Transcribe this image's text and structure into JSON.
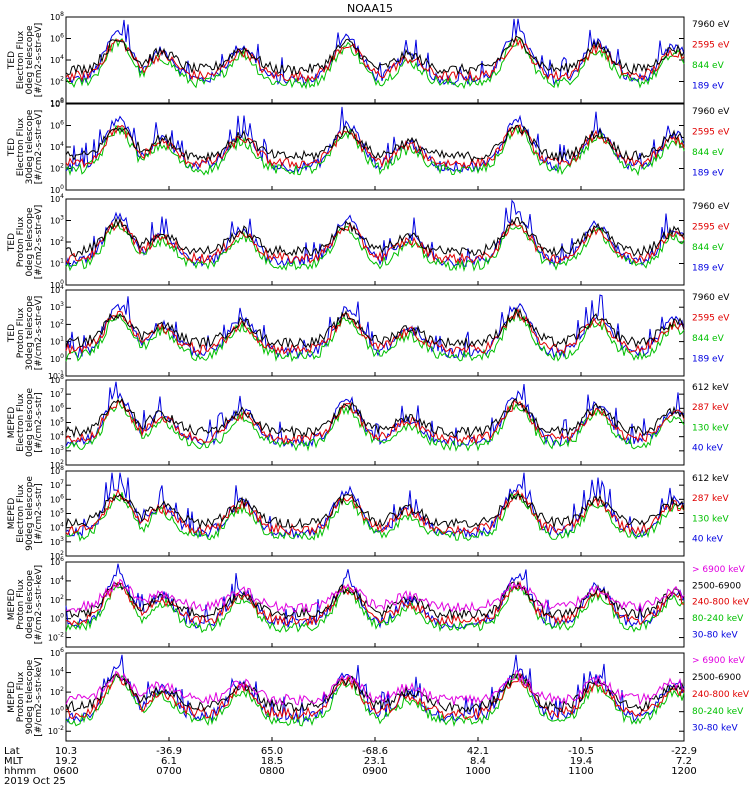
{
  "chart_data": {
    "type": "line",
    "title": "NOAA15",
    "date_label": "2019 Oct 25",
    "x_axis": {
      "row_labels": [
        "Lat",
        "MLT",
        "hhmm"
      ],
      "ticks": [
        {
          "lat": "10.3",
          "mlt": "19.2",
          "hhmm": "0600"
        },
        {
          "lat": "-36.9",
          "mlt": "6.1",
          "hhmm": "0700"
        },
        {
          "lat": "65.0",
          "mlt": "18.5",
          "hhmm": "0800"
        },
        {
          "lat": "-68.6",
          "mlt": "23.1",
          "hhmm": "0900"
        },
        {
          "lat": "42.1",
          "mlt": "8.4",
          "hhmm": "1000"
        },
        {
          "lat": "-10.5",
          "mlt": "19.4",
          "hhmm": "1100"
        },
        {
          "lat": "-22.9",
          "mlt": "7.2",
          "hhmm": "1200"
        }
      ],
      "range_hhmm": [
        "0600",
        "1200"
      ]
    },
    "panels": [
      {
        "ylabel": [
          "TED",
          "Electron Flux",
          "0deg telescope",
          "[#/cm2-s-str-eV]"
        ],
        "yticks": [
          {
            "base": "10",
            "exp": "0"
          },
          {
            "base": "10",
            "exp": "2"
          },
          {
            "base": "10",
            "exp": "4"
          },
          {
            "base": "10",
            "exp": "6"
          },
          {
            "base": "10",
            "exp": "8"
          }
        ],
        "ylog": [
          0,
          8
        ],
        "series": [
          {
            "label": "7960 eV",
            "color": "#000000"
          },
          {
            "label": "2595 eV",
            "color": "#e00000"
          },
          {
            "label": "844 eV",
            "color": "#00c000"
          },
          {
            "label": "189 eV",
            "color": "#0000e0"
          }
        ]
      },
      {
        "ylabel": [
          "TED",
          "Electron Flux",
          "30deg telescope",
          "[#/cm2-s-str-eV]"
        ],
        "yticks": [
          {
            "base": "10",
            "exp": "0"
          },
          {
            "base": "10",
            "exp": "2"
          },
          {
            "base": "10",
            "exp": "4"
          },
          {
            "base": "10",
            "exp": "6"
          },
          {
            "base": "10",
            "exp": "8"
          }
        ],
        "ylog": [
          0,
          8
        ],
        "series": [
          {
            "label": "7960 eV",
            "color": "#000000"
          },
          {
            "label": "2595 eV",
            "color": "#e00000"
          },
          {
            "label": "844 eV",
            "color": "#00c000"
          },
          {
            "label": "189 eV",
            "color": "#0000e0"
          }
        ]
      },
      {
        "ylabel": [
          "TED",
          "Proton Flux",
          "0deg telescope",
          "[#/cm2-s-str-eV]"
        ],
        "yticks": [
          {
            "base": "10",
            "exp": "0"
          },
          {
            "base": "10",
            "exp": "1"
          },
          {
            "base": "10",
            "exp": "2"
          },
          {
            "base": "10",
            "exp": "3"
          },
          {
            "base": "10",
            "exp": "4"
          }
        ],
        "ylog": [
          0,
          4
        ],
        "series": [
          {
            "label": "7960 eV",
            "color": "#000000"
          },
          {
            "label": "2595 eV",
            "color": "#e00000"
          },
          {
            "label": "844 eV",
            "color": "#00c000"
          },
          {
            "label": "189 eV",
            "color": "#0000e0"
          }
        ]
      },
      {
        "ylabel": [
          "TED",
          "Proton Flux",
          "30deg telescope",
          "[#/cm2-s-str-eV]"
        ],
        "yticks": [
          {
            "base": "10",
            "exp": "-1"
          },
          {
            "base": "10",
            "exp": "0"
          },
          {
            "base": "10",
            "exp": "1"
          },
          {
            "base": "10",
            "exp": "2"
          },
          {
            "base": "10",
            "exp": "3"
          },
          {
            "base": "10",
            "exp": "4"
          }
        ],
        "ylog": [
          -1,
          4
        ],
        "series": [
          {
            "label": "7960 eV",
            "color": "#000000"
          },
          {
            "label": "2595 eV",
            "color": "#e00000"
          },
          {
            "label": "844 eV",
            "color": "#00c000"
          },
          {
            "label": "189 eV",
            "color": "#0000e0"
          }
        ]
      },
      {
        "ylabel": [
          "MEPED",
          "Electron Flux",
          "0deg telescope",
          "[#/cm2-s-str]"
        ],
        "yticks": [
          {
            "base": "10",
            "exp": "2"
          },
          {
            "base": "10",
            "exp": "3"
          },
          {
            "base": "10",
            "exp": "4"
          },
          {
            "base": "10",
            "exp": "5"
          },
          {
            "base": "10",
            "exp": "6"
          },
          {
            "base": "10",
            "exp": "7"
          },
          {
            "base": "10",
            "exp": "8"
          }
        ],
        "ylog": [
          2,
          8
        ],
        "series": [
          {
            "label": "612 keV",
            "color": "#000000"
          },
          {
            "label": "287 keV",
            "color": "#e00000"
          },
          {
            "label": "130 keV",
            "color": "#00c000"
          },
          {
            "label": "40 keV",
            "color": "#0000e0"
          }
        ]
      },
      {
        "ylabel": [
          "MEPED",
          "Electron Flux",
          "90deg telescope",
          "[#/cm2-s-str]"
        ],
        "yticks": [
          {
            "base": "10",
            "exp": "2"
          },
          {
            "base": "10",
            "exp": "3"
          },
          {
            "base": "10",
            "exp": "4"
          },
          {
            "base": "10",
            "exp": "5"
          },
          {
            "base": "10",
            "exp": "6"
          },
          {
            "base": "10",
            "exp": "7"
          },
          {
            "base": "10",
            "exp": "8"
          }
        ],
        "ylog": [
          2,
          8
        ],
        "series": [
          {
            "label": "612 keV",
            "color": "#000000"
          },
          {
            "label": "287 keV",
            "color": "#e00000"
          },
          {
            "label": "130 keV",
            "color": "#00c000"
          },
          {
            "label": "40 keV",
            "color": "#0000e0"
          }
        ]
      },
      {
        "ylabel": [
          "MEPED",
          "Proton Flux",
          "0deg telescope",
          "[#/cm2-s-str-keV]"
        ],
        "yticks": [
          {
            "base": "10",
            "exp": "-2"
          },
          {
            "base": "10",
            "exp": "0"
          },
          {
            "base": "10",
            "exp": "2"
          },
          {
            "base": "10",
            "exp": "4"
          },
          {
            "base": "10",
            "exp": "6"
          }
        ],
        "ylog": [
          -3,
          6
        ],
        "series": [
          {
            "label": "> 6900 keV",
            "color": "#e000e0"
          },
          {
            "label": "2500-6900",
            "color": "#000000"
          },
          {
            "label": "240-800 keV",
            "color": "#e00000"
          },
          {
            "label": "80-240 keV",
            "color": "#00c000"
          },
          {
            "label": "30-80 keV",
            "color": "#0000e0"
          }
        ]
      },
      {
        "ylabel": [
          "MEPED",
          "Proton Flux",
          "90deg telescope",
          "[#/cm2-s-str-keV]"
        ],
        "yticks": [
          {
            "base": "10",
            "exp": "-2"
          },
          {
            "base": "10",
            "exp": "0"
          },
          {
            "base": "10",
            "exp": "2"
          },
          {
            "base": "10",
            "exp": "4"
          },
          {
            "base": "10",
            "exp": "6"
          }
        ],
        "ylog": [
          -3,
          6
        ],
        "series": [
          {
            "label": "> 6900 keV",
            "color": "#e000e0"
          },
          {
            "label": "2500-6900",
            "color": "#000000"
          },
          {
            "label": "240-800 keV",
            "color": "#e00000"
          },
          {
            "label": "80-240 keV",
            "color": "#00c000"
          },
          {
            "label": "30-80 keV",
            "color": "#0000e0"
          }
        ]
      }
    ]
  }
}
